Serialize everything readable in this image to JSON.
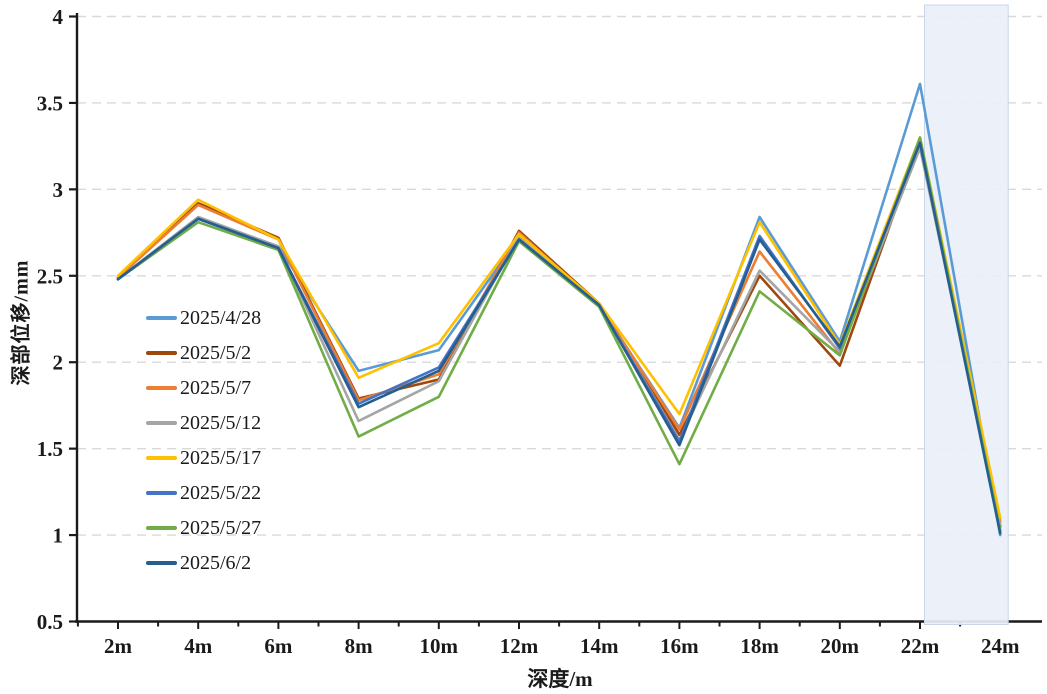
{
  "figure": {
    "background": "#ffffff",
    "text_color": "#1a1a1a",
    "axis_color": "#1a1a1a",
    "gridline_color": "#d9d9d9",
    "highlight_band": {
      "covers": "22m to 24m",
      "fill": "#e9eff8",
      "border": "#c9d6e8"
    }
  },
  "chart_data": {
    "type": "line",
    "title": "",
    "xlabel": "深度/m",
    "ylabel": "深部位移/mm",
    "categories": [
      "2m",
      "4m",
      "6m",
      "8m",
      "10m",
      "12m",
      "14m",
      "16m",
      "18m",
      "20m",
      "22m",
      "24m"
    ],
    "ylim": [
      0.5,
      4
    ],
    "yticks": [
      "0.5",
      "1",
      "1.5",
      "2",
      "2.5",
      "3",
      "3.5",
      "4"
    ],
    "grid": "horizontal-dashed",
    "legend_position": "inside-left",
    "series": [
      {
        "name": "2025/4/28",
        "color": "#5B9BD5",
        "values": [
          2.48,
          2.83,
          2.67,
          1.95,
          2.07,
          2.72,
          2.33,
          1.62,
          2.84,
          2.12,
          3.61,
          1.0
        ]
      },
      {
        "name": "2025/5/2",
        "color": "#9E480E",
        "values": [
          2.49,
          2.92,
          2.72,
          1.79,
          1.9,
          2.76,
          2.34,
          1.58,
          2.5,
          1.98,
          3.28,
          1.05
        ]
      },
      {
        "name": "2025/5/7",
        "color": "#ED7D31",
        "values": [
          2.49,
          2.91,
          2.71,
          1.78,
          1.93,
          2.75,
          2.33,
          1.61,
          2.64,
          2.05,
          3.26,
          1.08
        ]
      },
      {
        "name": "2025/5/12",
        "color": "#A5A5A5",
        "values": [
          2.48,
          2.84,
          2.67,
          1.66,
          1.89,
          2.73,
          2.33,
          1.55,
          2.53,
          2.06,
          3.24,
          1.06
        ]
      },
      {
        "name": "2025/5/17",
        "color": "#FFC000",
        "values": [
          2.5,
          2.94,
          2.71,
          1.91,
          2.11,
          2.74,
          2.34,
          1.7,
          2.81,
          2.1,
          3.3,
          1.1
        ]
      },
      {
        "name": "2025/5/22",
        "color": "#4472C4",
        "values": [
          2.48,
          2.83,
          2.66,
          1.76,
          1.97,
          2.71,
          2.33,
          1.54,
          2.73,
          2.08,
          3.28,
          1.02
        ]
      },
      {
        "name": "2025/5/27",
        "color": "#70AD47",
        "values": [
          2.48,
          2.81,
          2.65,
          1.57,
          1.8,
          2.7,
          2.32,
          1.41,
          2.41,
          2.04,
          3.3,
          1.03
        ]
      },
      {
        "name": "2025/6/2",
        "color": "#255E91",
        "values": [
          2.48,
          2.83,
          2.66,
          1.74,
          1.95,
          2.71,
          2.33,
          1.52,
          2.71,
          2.09,
          3.27,
          1.01
        ]
      }
    ]
  }
}
